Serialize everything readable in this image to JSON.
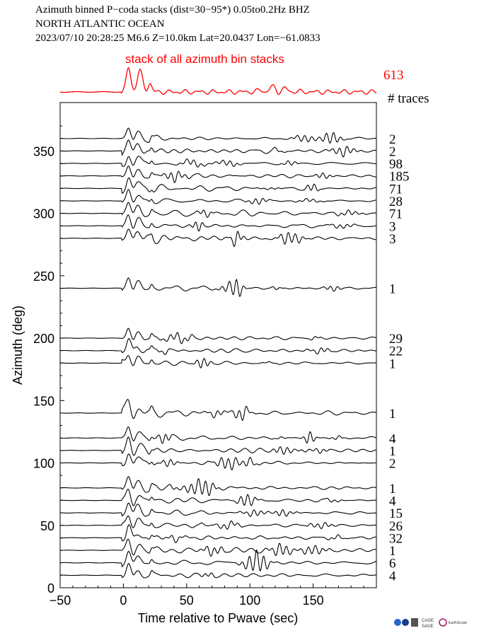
{
  "header": {
    "line1": "Azimuth binned P−coda stacks (dist=30−95*)  0.05to0.2Hz  BHZ",
    "line2": "NORTH ATLANTIC OCEAN",
    "line3": "2023/07/10  20:28:25  M6.6  Z=10.0km Lat=20.0437 Lon=−61.0833"
  },
  "colors": {
    "stack": "#ff0000",
    "traces": "#000000"
  },
  "chart_data": {
    "type": "line",
    "title": "stack of all azimuth bin stacks",
    "xlabel": "Time relative to Pwave (sec)",
    "ylabel": "Azimuth (deg)",
    "xlim": [
      -50,
      200
    ],
    "ylim": [
      0,
      380
    ],
    "xticks": [
      -50,
      0,
      50,
      100,
      150
    ],
    "xtick_labels": [
      "−50",
      "0",
      "50",
      "100",
      "150"
    ],
    "yticks": [
      0,
      50,
      100,
      150,
      200,
      250,
      300,
      350
    ],
    "ytick_labels": [
      "0",
      "50",
      "100",
      "150",
      "200",
      "250",
      "300",
      "350"
    ],
    "grid": false,
    "stack_trace_count": "613",
    "trace_count_header": "# traces",
    "series": [
      {
        "azimuth": 360,
        "start": -50,
        "traces": "2"
      },
      {
        "azimuth": 350,
        "start": -50,
        "traces": "2"
      },
      {
        "azimuth": 340,
        "start": -50,
        "traces": "98"
      },
      {
        "azimuth": 330,
        "start": -50,
        "traces": "185"
      },
      {
        "azimuth": 320,
        "start": -50,
        "traces": "71"
      },
      {
        "azimuth": 310,
        "start": -50,
        "traces": "28"
      },
      {
        "azimuth": 300,
        "start": -50,
        "traces": "71"
      },
      {
        "azimuth": 290,
        "start": -50,
        "traces": "3"
      },
      {
        "azimuth": 280,
        "start": -50,
        "traces": "3"
      },
      {
        "azimuth": 240,
        "start": -50,
        "traces": "1"
      },
      {
        "azimuth": 200,
        "start": -50,
        "traces": "29"
      },
      {
        "azimuth": 190,
        "start": -50,
        "traces": "22"
      },
      {
        "azimuth": 180,
        "start": -50,
        "traces": "1"
      },
      {
        "azimuth": 140,
        "start": -50,
        "traces": "1"
      },
      {
        "azimuth": 120,
        "start": -50,
        "traces": "4"
      },
      {
        "azimuth": 110,
        "start": -50,
        "traces": "1"
      },
      {
        "azimuth": 100,
        "start": -50,
        "traces": "2"
      },
      {
        "azimuth": 80,
        "start": -50,
        "traces": "1"
      },
      {
        "azimuth": 70,
        "start": -50,
        "traces": "4"
      },
      {
        "azimuth": 60,
        "start": -50,
        "traces": "15"
      },
      {
        "azimuth": 50,
        "start": -50,
        "traces": "26"
      },
      {
        "azimuth": 40,
        "start": -50,
        "traces": "32"
      },
      {
        "azimuth": 30,
        "start": -50,
        "traces": "1"
      },
      {
        "azimuth": 20,
        "start": -50,
        "traces": "6"
      },
      {
        "azimuth": 10,
        "start": -50,
        "traces": "4"
      }
    ]
  },
  "footer": {
    "logos": [
      "CAGE",
      "SAGE",
      "EarthScope"
    ]
  }
}
